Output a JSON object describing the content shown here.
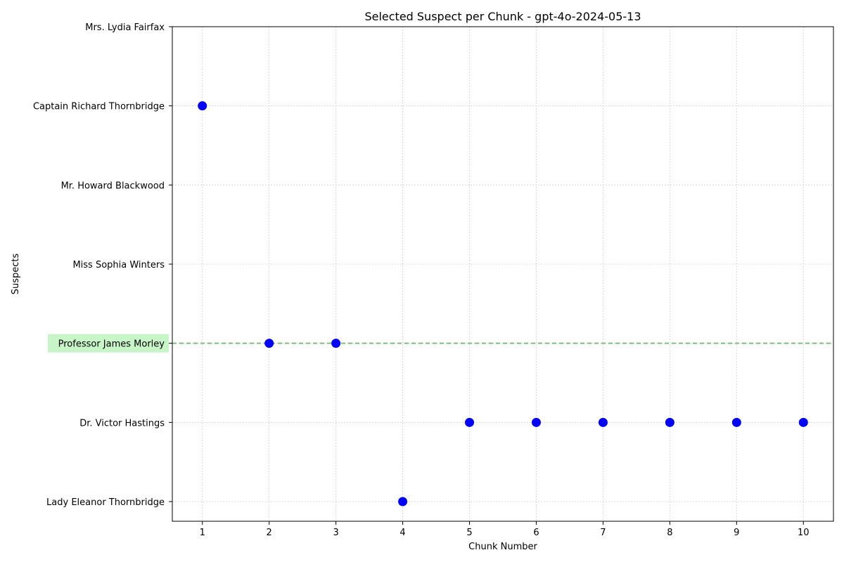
{
  "chart_data": {
    "type": "scatter",
    "title": "Selected Suspect per Chunk - gpt-4o-2024-05-13",
    "xlabel": "Chunk Number",
    "ylabel": "Suspects",
    "x_ticks": [
      1,
      2,
      3,
      4,
      5,
      6,
      7,
      8,
      9,
      10
    ],
    "xlim": [
      0.55,
      10.45
    ],
    "categories": [
      "Lady Eleanor Thornbridge",
      "Dr. Victor Hastings",
      "Professor James Morley",
      "Miss Sophia Winters",
      "Mr. Howard Blackwood",
      "Captain Richard Thornbridge",
      "Mrs. Lydia Fairfax"
    ],
    "points": [
      {
        "x": 1,
        "y": "Captain Richard Thornbridge"
      },
      {
        "x": 2,
        "y": "Professor James Morley"
      },
      {
        "x": 3,
        "y": "Professor James Morley"
      },
      {
        "x": 4,
        "y": "Lady Eleanor Thornbridge"
      },
      {
        "x": 5,
        "y": "Dr. Victor Hastings"
      },
      {
        "x": 6,
        "y": "Dr. Victor Hastings"
      },
      {
        "x": 7,
        "y": "Dr. Victor Hastings"
      },
      {
        "x": 8,
        "y": "Dr. Victor Hastings"
      },
      {
        "x": 9,
        "y": "Dr. Victor Hastings"
      },
      {
        "x": 10,
        "y": "Dr. Victor Hastings"
      }
    ],
    "highlighted_category": "Professor James Morley",
    "grid": true,
    "colors": {
      "point": "#0000ff",
      "highlight_line": "#7cbf7c",
      "highlight_label_bg": "#c8f5c8",
      "grid": "#d9d9d9"
    }
  }
}
